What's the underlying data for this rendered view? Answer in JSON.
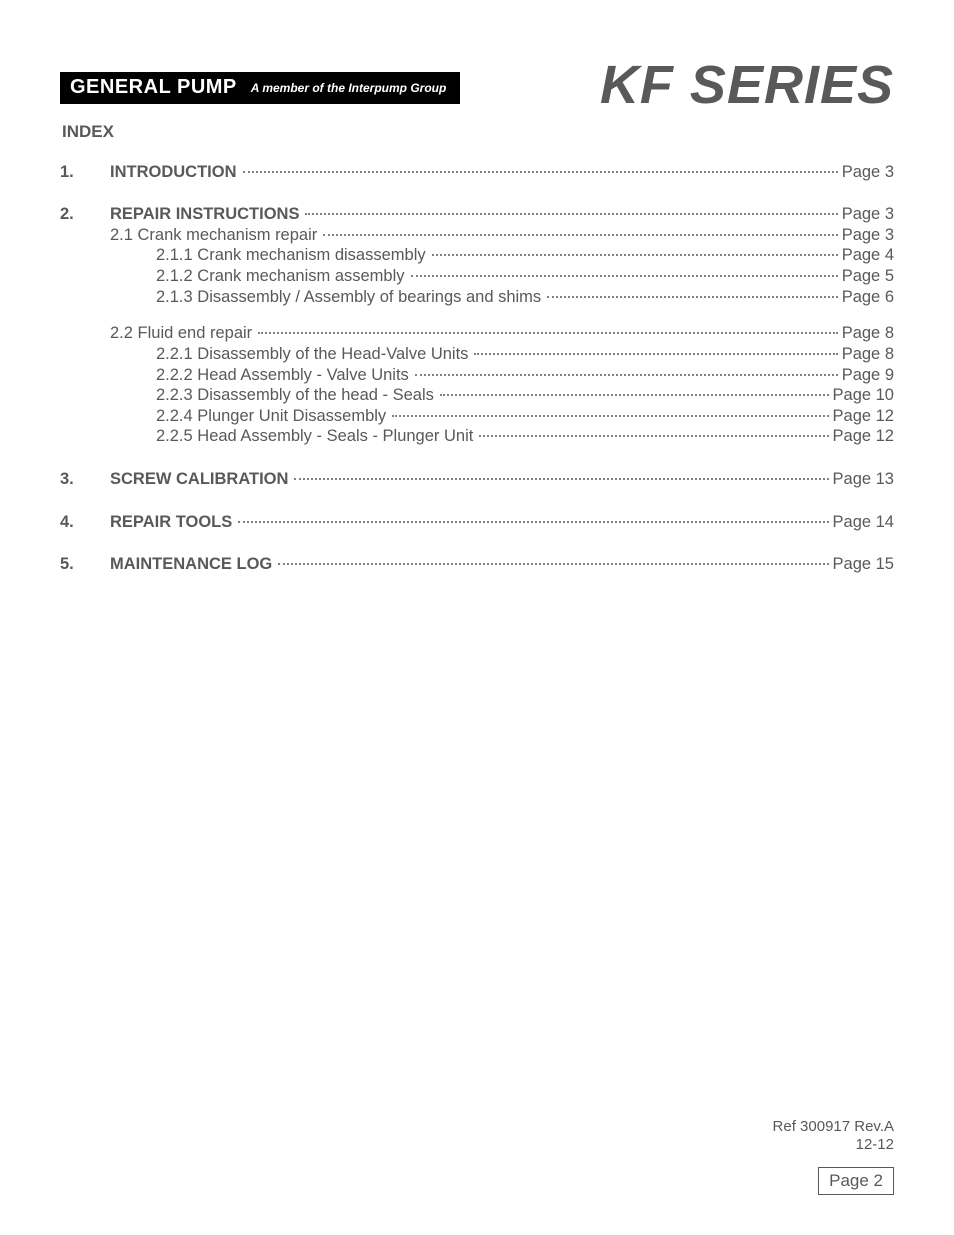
{
  "header": {
    "brand": "GENERAL PUMP",
    "tagline": "A member of the Interpump Group",
    "series_title": "KF SERIES"
  },
  "index_heading": "INDEX",
  "toc_colors": {
    "text": "#58595b",
    "dots": "#808184",
    "brand_bg": "#000000",
    "brand_fg": "#ffffff",
    "page_bg": "#ffffff"
  },
  "typography": {
    "body_fontsize_pt": 12,
    "heading_fontsize_pt": 13,
    "series_fontsize_pt": 40,
    "brand_fontsize_pt": 15,
    "tagline_fontsize_pt": 9
  },
  "toc": [
    {
      "num": "1.",
      "label": "INTRODUCTION",
      "page": "Page 3",
      "bold": true,
      "indent": 0,
      "gap_after": "section"
    },
    {
      "num": "2.",
      "label": "REPAIR INSTRUCTIONS",
      "page": "Page 3",
      "bold": true,
      "indent": 0
    },
    {
      "num": "",
      "label": "2.1 Crank mechanism repair",
      "page": "Page 3",
      "bold": false,
      "indent": 1
    },
    {
      "num": "",
      "label": "2.1.1 Crank mechanism disassembly",
      "page": "Page 4",
      "bold": false,
      "indent": 2
    },
    {
      "num": "",
      "label": "2.1.2 Crank mechanism assembly",
      "page": "Page 5",
      "bold": false,
      "indent": 2
    },
    {
      "num": "",
      "label": "2.1.3 Disassembly / Assembly of bearings and shims",
      "page": "Page 6",
      "bold": false,
      "indent": 2,
      "gap_after": "group"
    },
    {
      "num": "",
      "label": "2.2 Fluid end repair",
      "page": "Page 8",
      "bold": false,
      "indent": 1
    },
    {
      "num": "",
      "label": "2.2.1 Disassembly of the Head-Valve Units",
      "page": "Page 8",
      "bold": false,
      "indent": 2
    },
    {
      "num": "",
      "label": "2.2.2 Head Assembly - Valve Units",
      "page": "Page 9",
      "bold": false,
      "indent": 2
    },
    {
      "num": "",
      "label": "2.2.3 Disassembly of the head - Seals",
      "page": "Page 10",
      "bold": false,
      "indent": 2
    },
    {
      "num": "",
      "label": "2.2.4 Plunger Unit Disassembly",
      "page": "Page 12",
      "bold": false,
      "indent": 2
    },
    {
      "num": "",
      "label": "2.2.5 Head Assembly - Seals - Plunger Unit",
      "page": "Page 12",
      "bold": false,
      "indent": 2,
      "gap_after": "section"
    },
    {
      "num": "3.",
      "label": "SCREW CALIBRATION",
      "page": "Page 13",
      "bold": true,
      "indent": 0,
      "gap_after": "section"
    },
    {
      "num": "4.",
      "label": "REPAIR TOOLS",
      "page": "Page 14",
      "bold": true,
      "indent": 0,
      "gap_after": "section"
    },
    {
      "num": "5.",
      "label": "MAINTENANCE LOG",
      "page": "Page 15",
      "bold": true,
      "indent": 0
    }
  ],
  "footer": {
    "ref_line1": "Ref 300917 Rev.A",
    "ref_line2": "12-12",
    "page_label": "Page 2"
  }
}
